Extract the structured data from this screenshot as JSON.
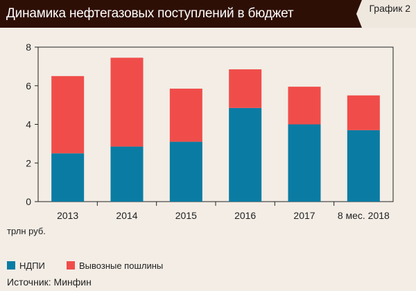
{
  "header": {
    "title": "Динамика нефтегазовых поступлений в бюджет",
    "tag": "График 2"
  },
  "unit_label": "трлн руб.",
  "source": "Источник: Минфин",
  "colors": {
    "ndpi": "#0a7ca3",
    "export": "#f04d4a"
  },
  "chart_data": {
    "type": "bar",
    "stacked": true,
    "categories": [
      "2013",
      "2014",
      "2015",
      "2016",
      "2017",
      "8 мес. 2018"
    ],
    "series": [
      {
        "name": "НДПИ",
        "values": [
          2.5,
          2.85,
          3.1,
          4.85,
          4.0,
          3.7
        ]
      },
      {
        "name": "Вывозные пошлины",
        "values": [
          4.0,
          4.6,
          2.75,
          2.0,
          1.95,
          1.8
        ]
      }
    ],
    "yticks": [
      0,
      2,
      4,
      6,
      8
    ],
    "ylim": [
      0,
      8
    ],
    "grid": false,
    "legend_position": "bottom-left"
  }
}
